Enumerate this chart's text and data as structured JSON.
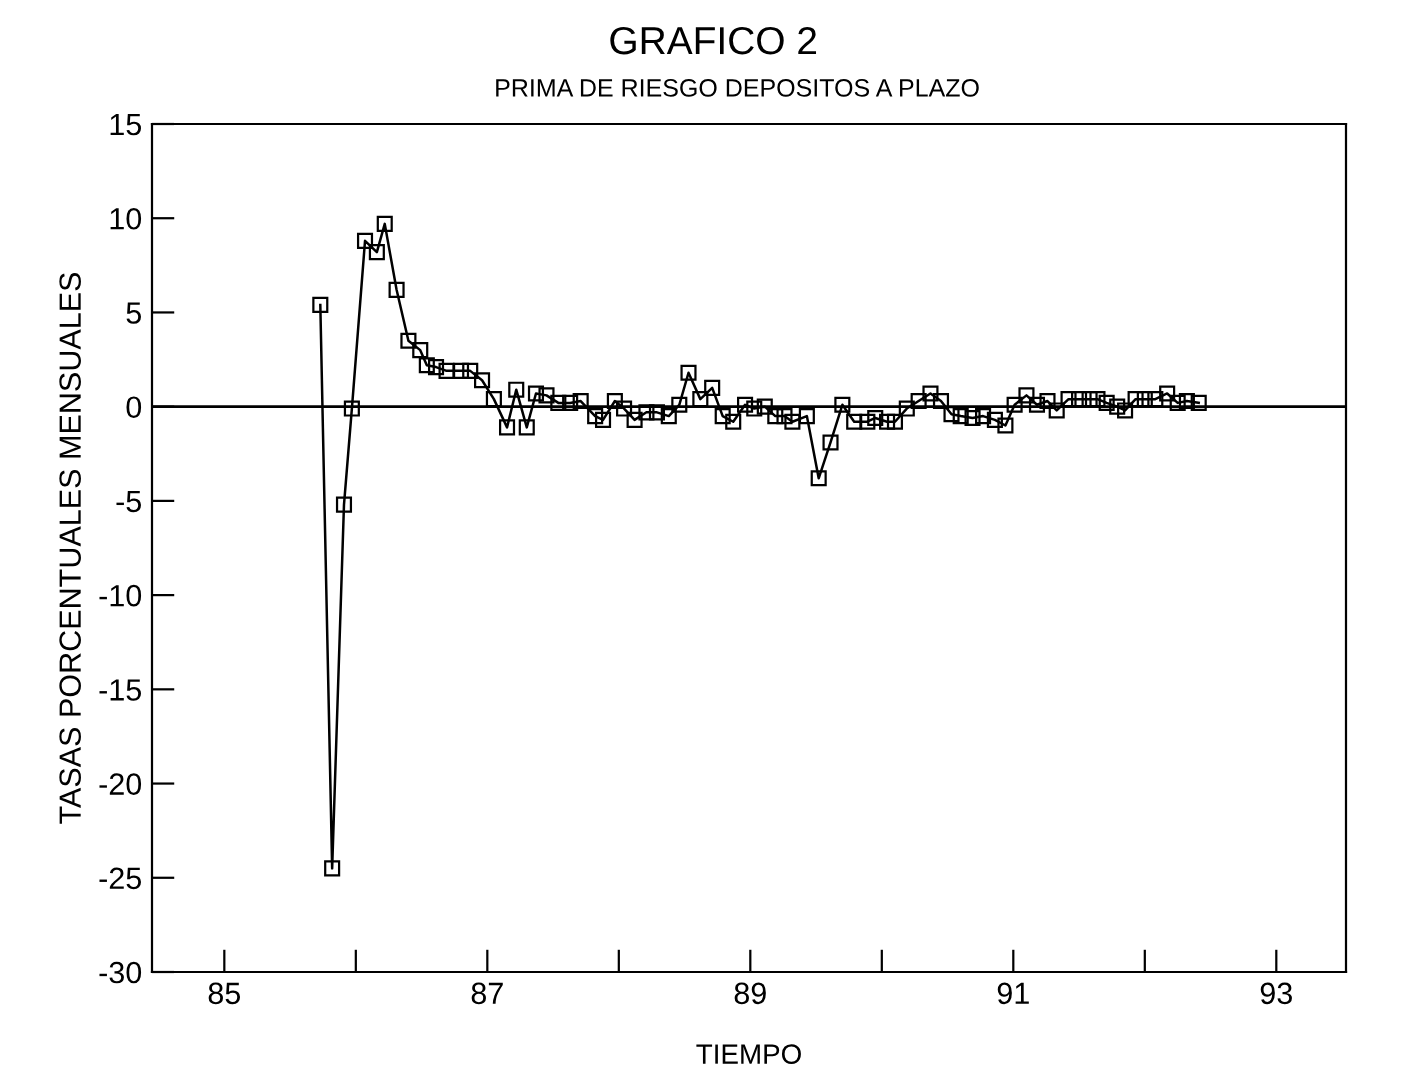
{
  "chart_data": {
    "type": "line",
    "title": "GRAFICO 2",
    "subtitle": "PRIMA DE RIESGO DEPOSITOS A PLAZO",
    "xlabel": "TIEMPO",
    "ylabel": "TASAS PORCENTUALES MENSUALES",
    "series": [
      {
        "color": "#000000",
        "x": [
          85.73,
          85.82,
          85.91,
          85.97,
          86.07,
          86.16,
          86.22,
          86.31,
          86.4,
          86.49,
          86.54,
          86.61,
          86.69,
          86.8,
          86.87,
          86.96,
          87.05,
          87.15,
          87.22,
          87.3,
          87.37,
          87.45,
          87.54,
          87.63,
          87.71,
          87.82,
          87.88,
          87.97,
          88.04,
          88.12,
          88.21,
          88.29,
          88.38,
          88.46,
          88.53,
          88.62,
          88.71,
          88.79,
          88.87,
          88.96,
          89.03,
          89.11,
          89.19,
          89.26,
          89.32,
          89.43,
          89.52,
          89.61,
          89.7,
          89.79,
          89.89,
          89.95,
          90.04,
          90.1,
          90.19,
          90.28,
          90.37,
          90.45,
          90.53,
          90.6,
          90.69,
          90.77,
          90.86,
          90.94,
          91.01,
          91.1,
          91.18,
          91.26,
          91.33,
          91.42,
          91.5,
          91.58,
          91.64,
          91.71,
          91.79,
          91.85,
          91.93,
          92.0,
          92.08,
          92.17,
          92.25,
          92.32,
          92.41
        ],
        "values": [
          5.4,
          -24.5,
          -5.2,
          -0.1,
          8.8,
          8.2,
          9.7,
          6.2,
          3.5,
          3.0,
          2.2,
          2.1,
          1.9,
          1.9,
          1.9,
          1.4,
          0.4,
          -1.1,
          0.9,
          -1.1,
          0.7,
          0.6,
          0.2,
          0.2,
          0.3,
          -0.5,
          -0.7,
          0.3,
          -0.1,
          -0.7,
          -0.3,
          -0.3,
          -0.5,
          0.1,
          1.8,
          0.4,
          1.0,
          -0.5,
          -0.8,
          0.1,
          -0.1,
          0.0,
          -0.5,
          -0.5,
          -0.8,
          -0.5,
          -3.8,
          -1.9,
          0.1,
          -0.8,
          -0.8,
          -0.6,
          -0.8,
          -0.8,
          -0.1,
          0.3,
          0.7,
          0.3,
          -0.4,
          -0.5,
          -0.6,
          -0.5,
          -0.7,
          -1.0,
          0.1,
          0.6,
          0.1,
          0.3,
          -0.2,
          0.4,
          0.4,
          0.4,
          0.4,
          0.2,
          0.0,
          -0.2,
          0.4,
          0.4,
          0.4,
          0.7,
          0.2,
          0.3,
          0.2
        ]
      }
    ],
    "xlim": [
      84.45,
      93.53
    ],
    "ylim": [
      -30,
      15
    ],
    "xticks": [
      85,
      {
        "value": 86,
        "label": null
      },
      87,
      {
        "value": 88,
        "label": null
      },
      89,
      {
        "value": 90,
        "label": null
      },
      91,
      {
        "value": 92,
        "label": null
      },
      93
    ],
    "yticks": [
      -30,
      -25,
      -20,
      -15,
      -10,
      -5,
      0,
      5,
      10,
      15
    ],
    "ref_lines": [
      {
        "axis": "y",
        "value": 0,
        "color": "#000000"
      }
    ],
    "marker": "square",
    "grid": false,
    "legend": false
  }
}
